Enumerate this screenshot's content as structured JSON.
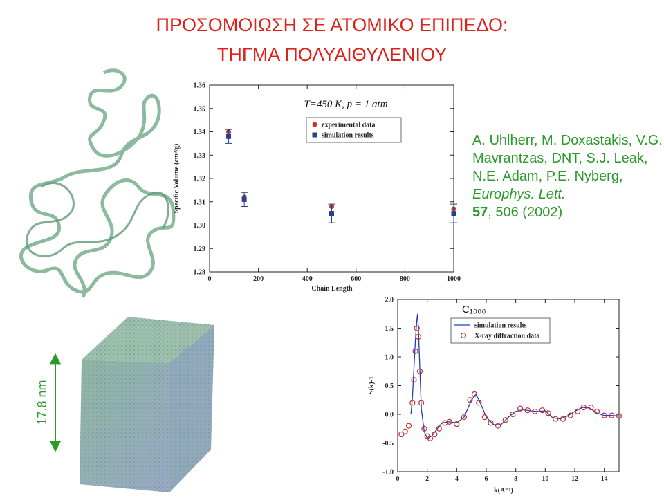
{
  "title_lines": [
    "ΠΡΟΣΟΜΟΙΩΣΗ ΣΕ ΑΤΟΜΙΚΟ ΕΠΙΠΕΔΟ:",
    "ΤΗΓΜΑ ΠΟΛΥΑΙΘΥΛΕΝΙΟΥ"
  ],
  "citation": [
    "A. Uhlherr, M. Doxastakis, V.G. Mavrantzas, DNT, S.J. Leak, N.E. Adam, P.E. Nyberg, ",
    "Europhys. Lett.",
    "57",
    ", 506 (2002)"
  ],
  "scale_label": "17.8 nm",
  "chart_data": [
    {
      "type": "scatter",
      "annotation": "T=450 K, p = 1 atm",
      "xlabel": "Chain Length",
      "ylabel": "Specific Volume (cm³/g)",
      "x": [
        78,
        142,
        500,
        1000
      ],
      "series": [
        {
          "name": "experimental data",
          "color": "#c0392b",
          "marker": "circle",
          "values": [
            1.34,
            1.312,
            1.308,
            1.307
          ]
        },
        {
          "name": "simulation results",
          "color": "#2b3f8f",
          "marker": "square",
          "values": [
            1.338,
            1.311,
            1.305,
            1.305
          ],
          "errors": [
            0.003,
            0.003,
            0.004,
            0.004
          ]
        }
      ],
      "xlim": [
        0,
        1000
      ],
      "xticks": [
        0,
        200,
        400,
        600,
        800,
        1000
      ],
      "ylim": [
        1.28,
        1.36
      ],
      "yticks": [
        1.28,
        1.29,
        {
          "value": 1.3,
          "label": "1.30"
        },
        1.31,
        1.32,
        1.33,
        1.34,
        1.35,
        1.36
      ]
    },
    {
      "type": "line",
      "annotation": "C₁₀₀₀",
      "xlabel": "k(A⁻¹)",
      "ylabel": "S(k)-1",
      "series": [
        {
          "name": "simulation results",
          "color": "#1f3fbf",
          "style": "line",
          "x": [
            0.9,
            1.0,
            1.1,
            1.2,
            1.3,
            1.35,
            1.4,
            1.5,
            1.6,
            1.8,
            2.0,
            2.3,
            2.6,
            3.0,
            3.5,
            4.0,
            4.5,
            5.0,
            5.3,
            5.6,
            6.0,
            6.5,
            7.0,
            7.5,
            8.0,
            8.5,
            9.0,
            9.5,
            10.0,
            10.5,
            11.0,
            11.5,
            12.0,
            12.5,
            13.0,
            13.5,
            14.0,
            14.5,
            15.0
          ],
          "values": [
            0.0,
            0.3,
            0.8,
            1.3,
            1.65,
            1.75,
            1.5,
            0.8,
            0.1,
            -0.3,
            -0.42,
            -0.38,
            -0.28,
            -0.15,
            -0.13,
            -0.15,
            -0.05,
            0.25,
            0.35,
            0.2,
            -0.05,
            -0.18,
            -0.18,
            -0.05,
            0.05,
            0.08,
            0.06,
            0.05,
            0.06,
            -0.06,
            -0.08,
            -0.03,
            0.05,
            0.12,
            0.11,
            0.02,
            -0.02,
            -0.02,
            -0.03
          ]
        },
        {
          "name": "X-ray diffraction data",
          "color": "#c03030",
          "style": "markers",
          "x": [
            0.25,
            0.5,
            0.75,
            1.0,
            1.1,
            1.2,
            1.3,
            1.4,
            1.5,
            1.6,
            1.8,
            2.0,
            2.2,
            2.5,
            2.8,
            3.2,
            3.5,
            4.0,
            4.5,
            4.9,
            5.2,
            5.5,
            5.9,
            6.3,
            6.8,
            7.3,
            7.8,
            8.3,
            8.8,
            9.3,
            9.8,
            10.2,
            10.7,
            11.2,
            11.7,
            12.2,
            12.6,
            13.1,
            13.5,
            14.0,
            14.5,
            15.0
          ],
          "values": [
            -0.35,
            -0.3,
            -0.2,
            0.2,
            0.6,
            1.1,
            1.5,
            1.35,
            0.75,
            0.2,
            -0.25,
            -0.38,
            -0.42,
            -0.35,
            -0.25,
            -0.15,
            -0.13,
            -0.17,
            -0.05,
            0.25,
            0.35,
            0.2,
            -0.05,
            -0.15,
            -0.2,
            -0.1,
            0.0,
            0.1,
            0.07,
            0.05,
            0.07,
            0.02,
            -0.08,
            -0.08,
            -0.02,
            0.05,
            0.12,
            0.12,
            0.05,
            -0.02,
            -0.02,
            -0.03
          ]
        }
      ],
      "xlim": [
        0,
        15
      ],
      "xticks": [
        0,
        2,
        4,
        6,
        8,
        10,
        12,
        14
      ],
      "ylim": [
        -1,
        2
      ],
      "yticks": [
        {
          "value": -1,
          "label": "-1.0"
        },
        -0.5,
        {
          "value": 0,
          "label": "0.0"
        },
        0.5,
        {
          "value": 1,
          "label": "1.0"
        },
        1.5,
        {
          "value": 2,
          "label": "2.0"
        }
      ]
    }
  ]
}
